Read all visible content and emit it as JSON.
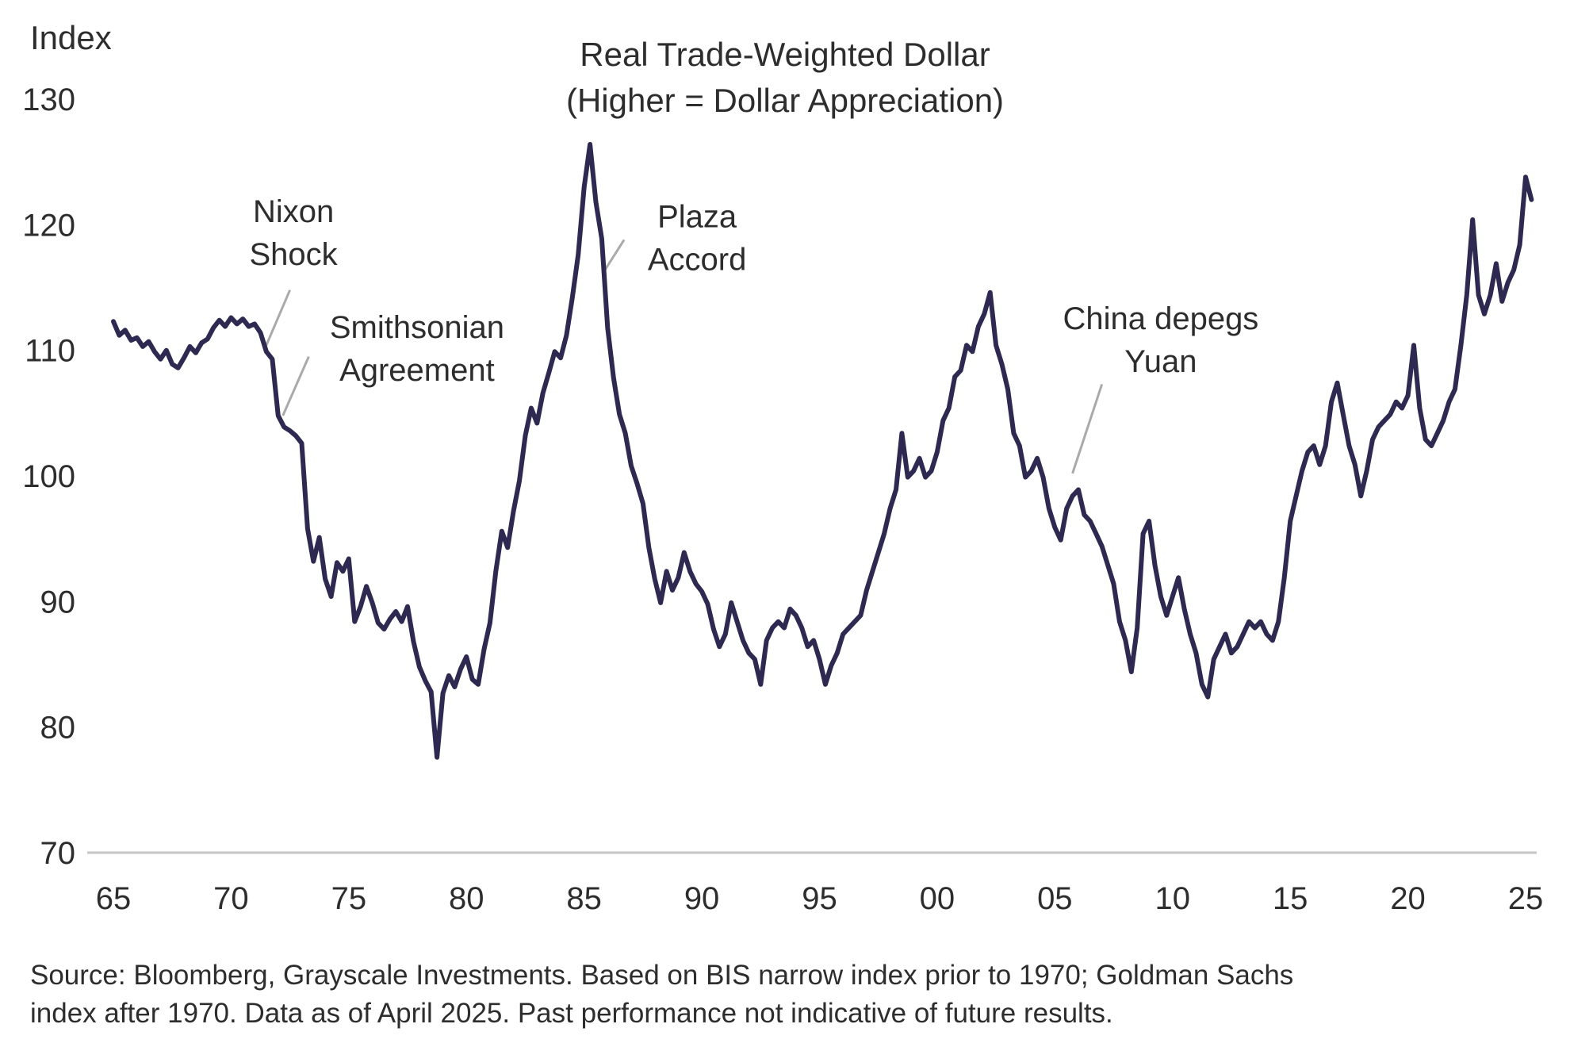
{
  "chart_data": {
    "type": "line",
    "title": "Real Trade-Weighted Dollar",
    "subtitle": "(Higher = Dollar Appreciation)",
    "ylabel": "Index",
    "ylim": [
      70,
      130
    ],
    "xlim": [
      1964.5,
      2025.8
    ],
    "grid": false,
    "legend": "none",
    "yticks": [
      70,
      80,
      90,
      100,
      110,
      120,
      130
    ],
    "xticks": [
      {
        "x": 1965,
        "label": "65"
      },
      {
        "x": 1970,
        "label": "70"
      },
      {
        "x": 1975,
        "label": "75"
      },
      {
        "x": 1980,
        "label": "80"
      },
      {
        "x": 1985,
        "label": "85"
      },
      {
        "x": 1990,
        "label": "90"
      },
      {
        "x": 1995,
        "label": "95"
      },
      {
        "x": 2000,
        "label": "00"
      },
      {
        "x": 2005,
        "label": "05"
      },
      {
        "x": 2010,
        "label": "10"
      },
      {
        "x": 2015,
        "label": "15"
      },
      {
        "x": 2020,
        "label": "20"
      },
      {
        "x": 2025,
        "label": "25"
      }
    ],
    "colors": {
      "line": "#2e2950",
      "text": "#2d2d2d",
      "leader": "#aaaaaa",
      "axis": "#c6c6c6"
    },
    "annotations": [
      {
        "id": "nixon-shock",
        "lines": [
          "Nixon",
          "Shock"
        ],
        "text_x": 1972.65,
        "text_y": 120.2,
        "leader": [
          [
            1972.5,
            114.8
          ],
          [
            1971.45,
            110.2
          ]
        ]
      },
      {
        "id": "smithsonian-agreement",
        "lines": [
          "Smithsonian",
          "Agreement"
        ],
        "text_x": 1977.9,
        "text_y": 111.0,
        "leader": [
          [
            1973.3,
            109.5
          ],
          [
            1972.2,
            104.8
          ]
        ]
      },
      {
        "id": "plaza-accord",
        "lines": [
          "Plaza",
          "Accord"
        ],
        "text_x": 1989.8,
        "text_y": 119.8,
        "leader": [
          [
            1986.7,
            118.8
          ],
          [
            1985.85,
            116.3
          ]
        ]
      },
      {
        "id": "china-depegs-yuan",
        "lines": [
          "China depegs",
          "Yuan"
        ],
        "text_x": 2009.5,
        "text_y": 111.7,
        "leader": [
          [
            2007.0,
            107.3
          ],
          [
            2005.75,
            100.2
          ]
        ]
      }
    ],
    "series": [
      {
        "name": "Real Trade-Weighted Dollar Index",
        "points": [
          [
            1965.0,
            112.3
          ],
          [
            1965.25,
            111.2
          ],
          [
            1965.5,
            111.6
          ],
          [
            1965.75,
            110.8
          ],
          [
            1966.0,
            111.0
          ],
          [
            1966.25,
            110.3
          ],
          [
            1966.5,
            110.7
          ],
          [
            1966.75,
            109.9
          ],
          [
            1967.0,
            109.3
          ],
          [
            1967.25,
            110.0
          ],
          [
            1967.5,
            108.9
          ],
          [
            1967.75,
            108.6
          ],
          [
            1968.0,
            109.4
          ],
          [
            1968.25,
            110.3
          ],
          [
            1968.5,
            109.8
          ],
          [
            1968.75,
            110.6
          ],
          [
            1969.0,
            110.9
          ],
          [
            1969.25,
            111.8
          ],
          [
            1969.5,
            112.4
          ],
          [
            1969.75,
            111.9
          ],
          [
            1970.0,
            112.6
          ],
          [
            1970.25,
            112.1
          ],
          [
            1970.5,
            112.5
          ],
          [
            1970.75,
            111.9
          ],
          [
            1971.0,
            112.1
          ],
          [
            1971.25,
            111.4
          ],
          [
            1971.5,
            109.9
          ],
          [
            1971.75,
            109.3
          ],
          [
            1972.0,
            104.8
          ],
          [
            1972.25,
            103.9
          ],
          [
            1972.5,
            103.6
          ],
          [
            1972.75,
            103.2
          ],
          [
            1973.0,
            102.6
          ],
          [
            1973.25,
            95.8
          ],
          [
            1973.5,
            93.2
          ],
          [
            1973.75,
            95.1
          ],
          [
            1974.0,
            91.8
          ],
          [
            1974.25,
            90.4
          ],
          [
            1974.5,
            93.1
          ],
          [
            1974.75,
            92.4
          ],
          [
            1975.0,
            93.4
          ],
          [
            1975.25,
            88.4
          ],
          [
            1975.5,
            89.6
          ],
          [
            1975.75,
            91.2
          ],
          [
            1976.0,
            89.9
          ],
          [
            1976.25,
            88.3
          ],
          [
            1976.5,
            87.8
          ],
          [
            1976.75,
            88.6
          ],
          [
            1977.0,
            89.2
          ],
          [
            1977.25,
            88.4
          ],
          [
            1977.5,
            89.6
          ],
          [
            1977.75,
            86.8
          ],
          [
            1978.0,
            84.8
          ],
          [
            1978.25,
            83.7
          ],
          [
            1978.5,
            82.8
          ],
          [
            1978.75,
            77.6
          ],
          [
            1979.0,
            82.7
          ],
          [
            1979.25,
            84.1
          ],
          [
            1979.5,
            83.2
          ],
          [
            1979.75,
            84.6
          ],
          [
            1980.0,
            85.6
          ],
          [
            1980.25,
            83.8
          ],
          [
            1980.5,
            83.4
          ],
          [
            1980.75,
            86.2
          ],
          [
            1981.0,
            88.3
          ],
          [
            1981.25,
            92.4
          ],
          [
            1981.5,
            95.6
          ],
          [
            1981.75,
            94.3
          ],
          [
            1982.0,
            97.2
          ],
          [
            1982.25,
            99.6
          ],
          [
            1982.5,
            103.2
          ],
          [
            1982.75,
            105.4
          ],
          [
            1983.0,
            104.2
          ],
          [
            1983.25,
            106.6
          ],
          [
            1983.5,
            108.2
          ],
          [
            1983.75,
            109.9
          ],
          [
            1984.0,
            109.4
          ],
          [
            1984.25,
            111.2
          ],
          [
            1984.5,
            114.2
          ],
          [
            1984.75,
            117.6
          ],
          [
            1985.0,
            123.0
          ],
          [
            1985.25,
            126.4
          ],
          [
            1985.5,
            121.8
          ],
          [
            1985.75,
            118.9
          ],
          [
            1986.0,
            111.8
          ],
          [
            1986.25,
            107.8
          ],
          [
            1986.5,
            104.9
          ],
          [
            1986.75,
            103.4
          ],
          [
            1987.0,
            100.8
          ],
          [
            1987.25,
            99.4
          ],
          [
            1987.5,
            97.8
          ],
          [
            1987.75,
            94.3
          ],
          [
            1988.0,
            91.8
          ],
          [
            1988.25,
            89.9
          ],
          [
            1988.5,
            92.4
          ],
          [
            1988.75,
            90.9
          ],
          [
            1989.0,
            91.9
          ],
          [
            1989.25,
            93.9
          ],
          [
            1989.5,
            92.4
          ],
          [
            1989.75,
            91.4
          ],
          [
            1990.0,
            90.8
          ],
          [
            1990.25,
            89.8
          ],
          [
            1990.5,
            87.8
          ],
          [
            1990.75,
            86.4
          ],
          [
            1991.0,
            87.4
          ],
          [
            1991.25,
            89.9
          ],
          [
            1991.5,
            88.4
          ],
          [
            1991.75,
            86.9
          ],
          [
            1992.0,
            85.9
          ],
          [
            1992.25,
            85.4
          ],
          [
            1992.5,
            83.4
          ],
          [
            1992.75,
            86.9
          ],
          [
            1993.0,
            87.9
          ],
          [
            1993.25,
            88.4
          ],
          [
            1993.5,
            87.9
          ],
          [
            1993.75,
            89.4
          ],
          [
            1994.0,
            88.9
          ],
          [
            1994.25,
            87.9
          ],
          [
            1994.5,
            86.4
          ],
          [
            1994.75,
            86.9
          ],
          [
            1995.0,
            85.4
          ],
          [
            1995.25,
            83.4
          ],
          [
            1995.5,
            84.9
          ],
          [
            1995.75,
            85.9
          ],
          [
            1996.0,
            87.4
          ],
          [
            1996.25,
            87.9
          ],
          [
            1996.5,
            88.4
          ],
          [
            1996.75,
            88.9
          ],
          [
            1997.0,
            90.9
          ],
          [
            1997.25,
            92.4
          ],
          [
            1997.5,
            93.9
          ],
          [
            1997.75,
            95.4
          ],
          [
            1998.0,
            97.4
          ],
          [
            1998.25,
            98.9
          ],
          [
            1998.5,
            103.4
          ],
          [
            1998.75,
            99.9
          ],
          [
            1999.0,
            100.4
          ],
          [
            1999.25,
            101.4
          ],
          [
            1999.5,
            99.9
          ],
          [
            1999.75,
            100.4
          ],
          [
            2000.0,
            101.9
          ],
          [
            2000.25,
            104.4
          ],
          [
            2000.5,
            105.4
          ],
          [
            2000.75,
            107.9
          ],
          [
            2001.0,
            108.4
          ],
          [
            2001.25,
            110.4
          ],
          [
            2001.5,
            109.9
          ],
          [
            2001.75,
            111.9
          ],
          [
            2002.0,
            112.9
          ],
          [
            2002.25,
            114.6
          ],
          [
            2002.5,
            110.4
          ],
          [
            2002.75,
            108.9
          ],
          [
            2003.0,
            106.9
          ],
          [
            2003.25,
            103.4
          ],
          [
            2003.5,
            102.4
          ],
          [
            2003.75,
            99.9
          ],
          [
            2004.0,
            100.4
          ],
          [
            2004.25,
            101.4
          ],
          [
            2004.5,
            99.9
          ],
          [
            2004.75,
            97.4
          ],
          [
            2005.0,
            95.9
          ],
          [
            2005.25,
            94.9
          ],
          [
            2005.5,
            97.4
          ],
          [
            2005.75,
            98.4
          ],
          [
            2006.0,
            98.9
          ],
          [
            2006.25,
            96.9
          ],
          [
            2006.5,
            96.4
          ],
          [
            2006.75,
            95.4
          ],
          [
            2007.0,
            94.4
          ],
          [
            2007.25,
            92.9
          ],
          [
            2007.5,
            91.4
          ],
          [
            2007.75,
            88.4
          ],
          [
            2008.0,
            86.9
          ],
          [
            2008.25,
            84.4
          ],
          [
            2008.5,
            87.9
          ],
          [
            2008.75,
            95.4
          ],
          [
            2009.0,
            96.4
          ],
          [
            2009.25,
            92.9
          ],
          [
            2009.5,
            90.4
          ],
          [
            2009.75,
            88.9
          ],
          [
            2010.0,
            90.4
          ],
          [
            2010.25,
            91.9
          ],
          [
            2010.5,
            89.4
          ],
          [
            2010.75,
            87.4
          ],
          [
            2011.0,
            85.9
          ],
          [
            2011.25,
            83.4
          ],
          [
            2011.5,
            82.4
          ],
          [
            2011.75,
            85.4
          ],
          [
            2012.0,
            86.4
          ],
          [
            2012.25,
            87.4
          ],
          [
            2012.5,
            85.9
          ],
          [
            2012.75,
            86.4
          ],
          [
            2013.0,
            87.4
          ],
          [
            2013.25,
            88.4
          ],
          [
            2013.5,
            87.9
          ],
          [
            2013.75,
            88.4
          ],
          [
            2014.0,
            87.4
          ],
          [
            2014.25,
            86.9
          ],
          [
            2014.5,
            88.4
          ],
          [
            2014.75,
            91.9
          ],
          [
            2015.0,
            96.4
          ],
          [
            2015.25,
            98.4
          ],
          [
            2015.5,
            100.4
          ],
          [
            2015.75,
            101.9
          ],
          [
            2016.0,
            102.4
          ],
          [
            2016.25,
            100.9
          ],
          [
            2016.5,
            102.4
          ],
          [
            2016.75,
            105.9
          ],
          [
            2017.0,
            107.4
          ],
          [
            2017.25,
            104.9
          ],
          [
            2017.5,
            102.4
          ],
          [
            2017.75,
            100.9
          ],
          [
            2018.0,
            98.4
          ],
          [
            2018.25,
            100.4
          ],
          [
            2018.5,
            102.9
          ],
          [
            2018.75,
            103.9
          ],
          [
            2019.0,
            104.4
          ],
          [
            2019.25,
            104.9
          ],
          [
            2019.5,
            105.9
          ],
          [
            2019.75,
            105.4
          ],
          [
            2020.0,
            106.4
          ],
          [
            2020.25,
            110.4
          ],
          [
            2020.5,
            105.4
          ],
          [
            2020.75,
            102.9
          ],
          [
            2021.0,
            102.4
          ],
          [
            2021.25,
            103.4
          ],
          [
            2021.5,
            104.4
          ],
          [
            2021.75,
            105.9
          ],
          [
            2022.0,
            106.9
          ],
          [
            2022.25,
            110.4
          ],
          [
            2022.5,
            114.4
          ],
          [
            2022.75,
            120.4
          ],
          [
            2023.0,
            114.4
          ],
          [
            2023.25,
            112.9
          ],
          [
            2023.5,
            114.4
          ],
          [
            2023.75,
            116.9
          ],
          [
            2024.0,
            113.9
          ],
          [
            2024.25,
            115.4
          ],
          [
            2024.5,
            116.4
          ],
          [
            2024.75,
            118.4
          ],
          [
            2025.0,
            123.8
          ],
          [
            2025.25,
            122.0
          ]
        ]
      }
    ]
  },
  "footer": {
    "line1": "Source: Bloomberg, Grayscale Investments. Based on BIS narrow index prior to 1970; Goldman Sachs",
    "line2": "index after 1970. Data as of April 2025. Past performance not indicative of future results."
  }
}
